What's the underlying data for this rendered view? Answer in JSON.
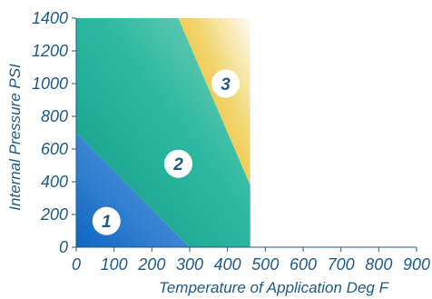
{
  "chart_data": {
    "type": "area",
    "title": "",
    "xlabel": "Temperature of Application Deg F",
    "ylabel": "Internal Pressure PSI",
    "xlim": [
      0,
      900
    ],
    "ylim": [
      0,
      1400
    ],
    "x_ticks": [
      "0",
      "100",
      "200",
      "300",
      "400",
      "500",
      "600",
      "700",
      "800",
      "900"
    ],
    "y_ticks": [
      "0",
      "200",
      "400",
      "600",
      "800",
      "1000",
      "1200",
      "1400"
    ],
    "grid": false,
    "regions": [
      {
        "name": "1",
        "color": "#1a73c9",
        "polygon": [
          [
            0,
            0
          ],
          [
            300,
            0
          ],
          [
            0,
            700
          ]
        ]
      },
      {
        "name": "2",
        "color": "#15a98f",
        "polygon": [
          [
            0,
            700
          ],
          [
            300,
            0
          ],
          [
            460,
            0
          ],
          [
            460,
            380
          ],
          [
            270,
            1400
          ],
          [
            0,
            1400
          ]
        ]
      },
      {
        "name": "3",
        "color": "#e3b22b",
        "polygon": [
          [
            270,
            1400
          ],
          [
            460,
            1400
          ],
          [
            460,
            380
          ]
        ]
      }
    ],
    "labels": [
      {
        "text": "1",
        "x": 80,
        "y": 160
      },
      {
        "text": "2",
        "x": 270,
        "y": 510
      },
      {
        "text": "3",
        "x": 395,
        "y": 1000
      }
    ]
  }
}
